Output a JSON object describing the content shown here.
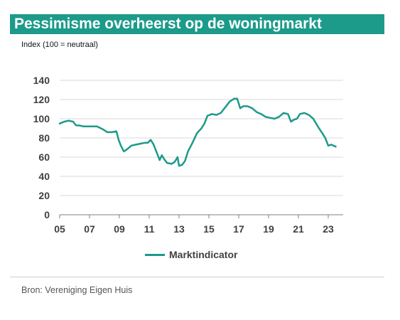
{
  "header": {
    "title": "Pessimisme overheerst op de woningmarkt",
    "subtitle": "Index (100 = neutraal)"
  },
  "legend": {
    "label": "Marktindicator"
  },
  "footer": {
    "source": "Bron: Vereniging Eigen Huis"
  },
  "colors": {
    "series": "#1c9a8a",
    "grid": "#d9d9d9",
    "axis": "#7f7f7f",
    "tick_text": "#404040"
  },
  "chart_data": {
    "type": "line",
    "title": "Pessimisme overheerst op de woningmarkt",
    "ylabel": "Index (100 = neutraal)",
    "xlabel": "",
    "xlim": [
      2005,
      2024
    ],
    "ylim": [
      0,
      140
    ],
    "x_ticks": [
      2005,
      2007,
      2009,
      2011,
      2013,
      2015,
      2017,
      2019,
      2021,
      2023
    ],
    "x_tick_labels": [
      "05",
      "07",
      "09",
      "11",
      "13",
      "15",
      "17",
      "19",
      "21",
      "23"
    ],
    "y_ticks": [
      0,
      20,
      40,
      60,
      80,
      100,
      120,
      140
    ],
    "y_tick_labels": [
      "0",
      "20",
      "40",
      "60",
      "80",
      "100",
      "120",
      "140"
    ],
    "grid": "horizontal",
    "legend_position": "bottom",
    "series": [
      {
        "name": "Marktindicator",
        "x": [
          2005.0,
          2005.3,
          2005.6,
          2005.9,
          2006.1,
          2006.3,
          2006.6,
          2007.0,
          2007.5,
          2007.9,
          2008.2,
          2008.5,
          2008.8,
          2008.95,
          2009.1,
          2009.3,
          2009.5,
          2009.8,
          2010.1,
          2010.4,
          2010.7,
          2010.9,
          2011.1,
          2011.3,
          2011.5,
          2011.7,
          2011.85,
          2012.0,
          2012.2,
          2012.5,
          2012.7,
          2012.9,
          2013.0,
          2013.2,
          2013.4,
          2013.6,
          2013.9,
          2014.2,
          2014.5,
          2014.7,
          2014.9,
          2015.2,
          2015.5,
          2015.8,
          2016.1,
          2016.4,
          2016.7,
          2016.9,
          2017.1,
          2017.3,
          2017.6,
          2017.9,
          2018.2,
          2018.5,
          2018.8,
          2019.1,
          2019.4,
          2019.7,
          2020.0,
          2020.3,
          2020.5,
          2020.7,
          2020.9,
          2021.1,
          2021.4,
          2021.7,
          2022.0,
          2022.3,
          2022.6,
          2022.8,
          2023.0,
          2023.2,
          2023.5
        ],
        "values": [
          95,
          97,
          98,
          97,
          93,
          93,
          92,
          92,
          92,
          89,
          86,
          86,
          87,
          78,
          72,
          66,
          68,
          72,
          73,
          74,
          75,
          75,
          78,
          73,
          65,
          57,
          62,
          58,
          54,
          53,
          55,
          60,
          51,
          52,
          56,
          66,
          75,
          85,
          90,
          95,
          103,
          105,
          104,
          106,
          112,
          118,
          121,
          121,
          111,
          113,
          113,
          111,
          107,
          105,
          102,
          101,
          100,
          102,
          106,
          105,
          97,
          99,
          100,
          105,
          106,
          104,
          100,
          92,
          85,
          80,
          72,
          73,
          71
        ]
      }
    ]
  }
}
